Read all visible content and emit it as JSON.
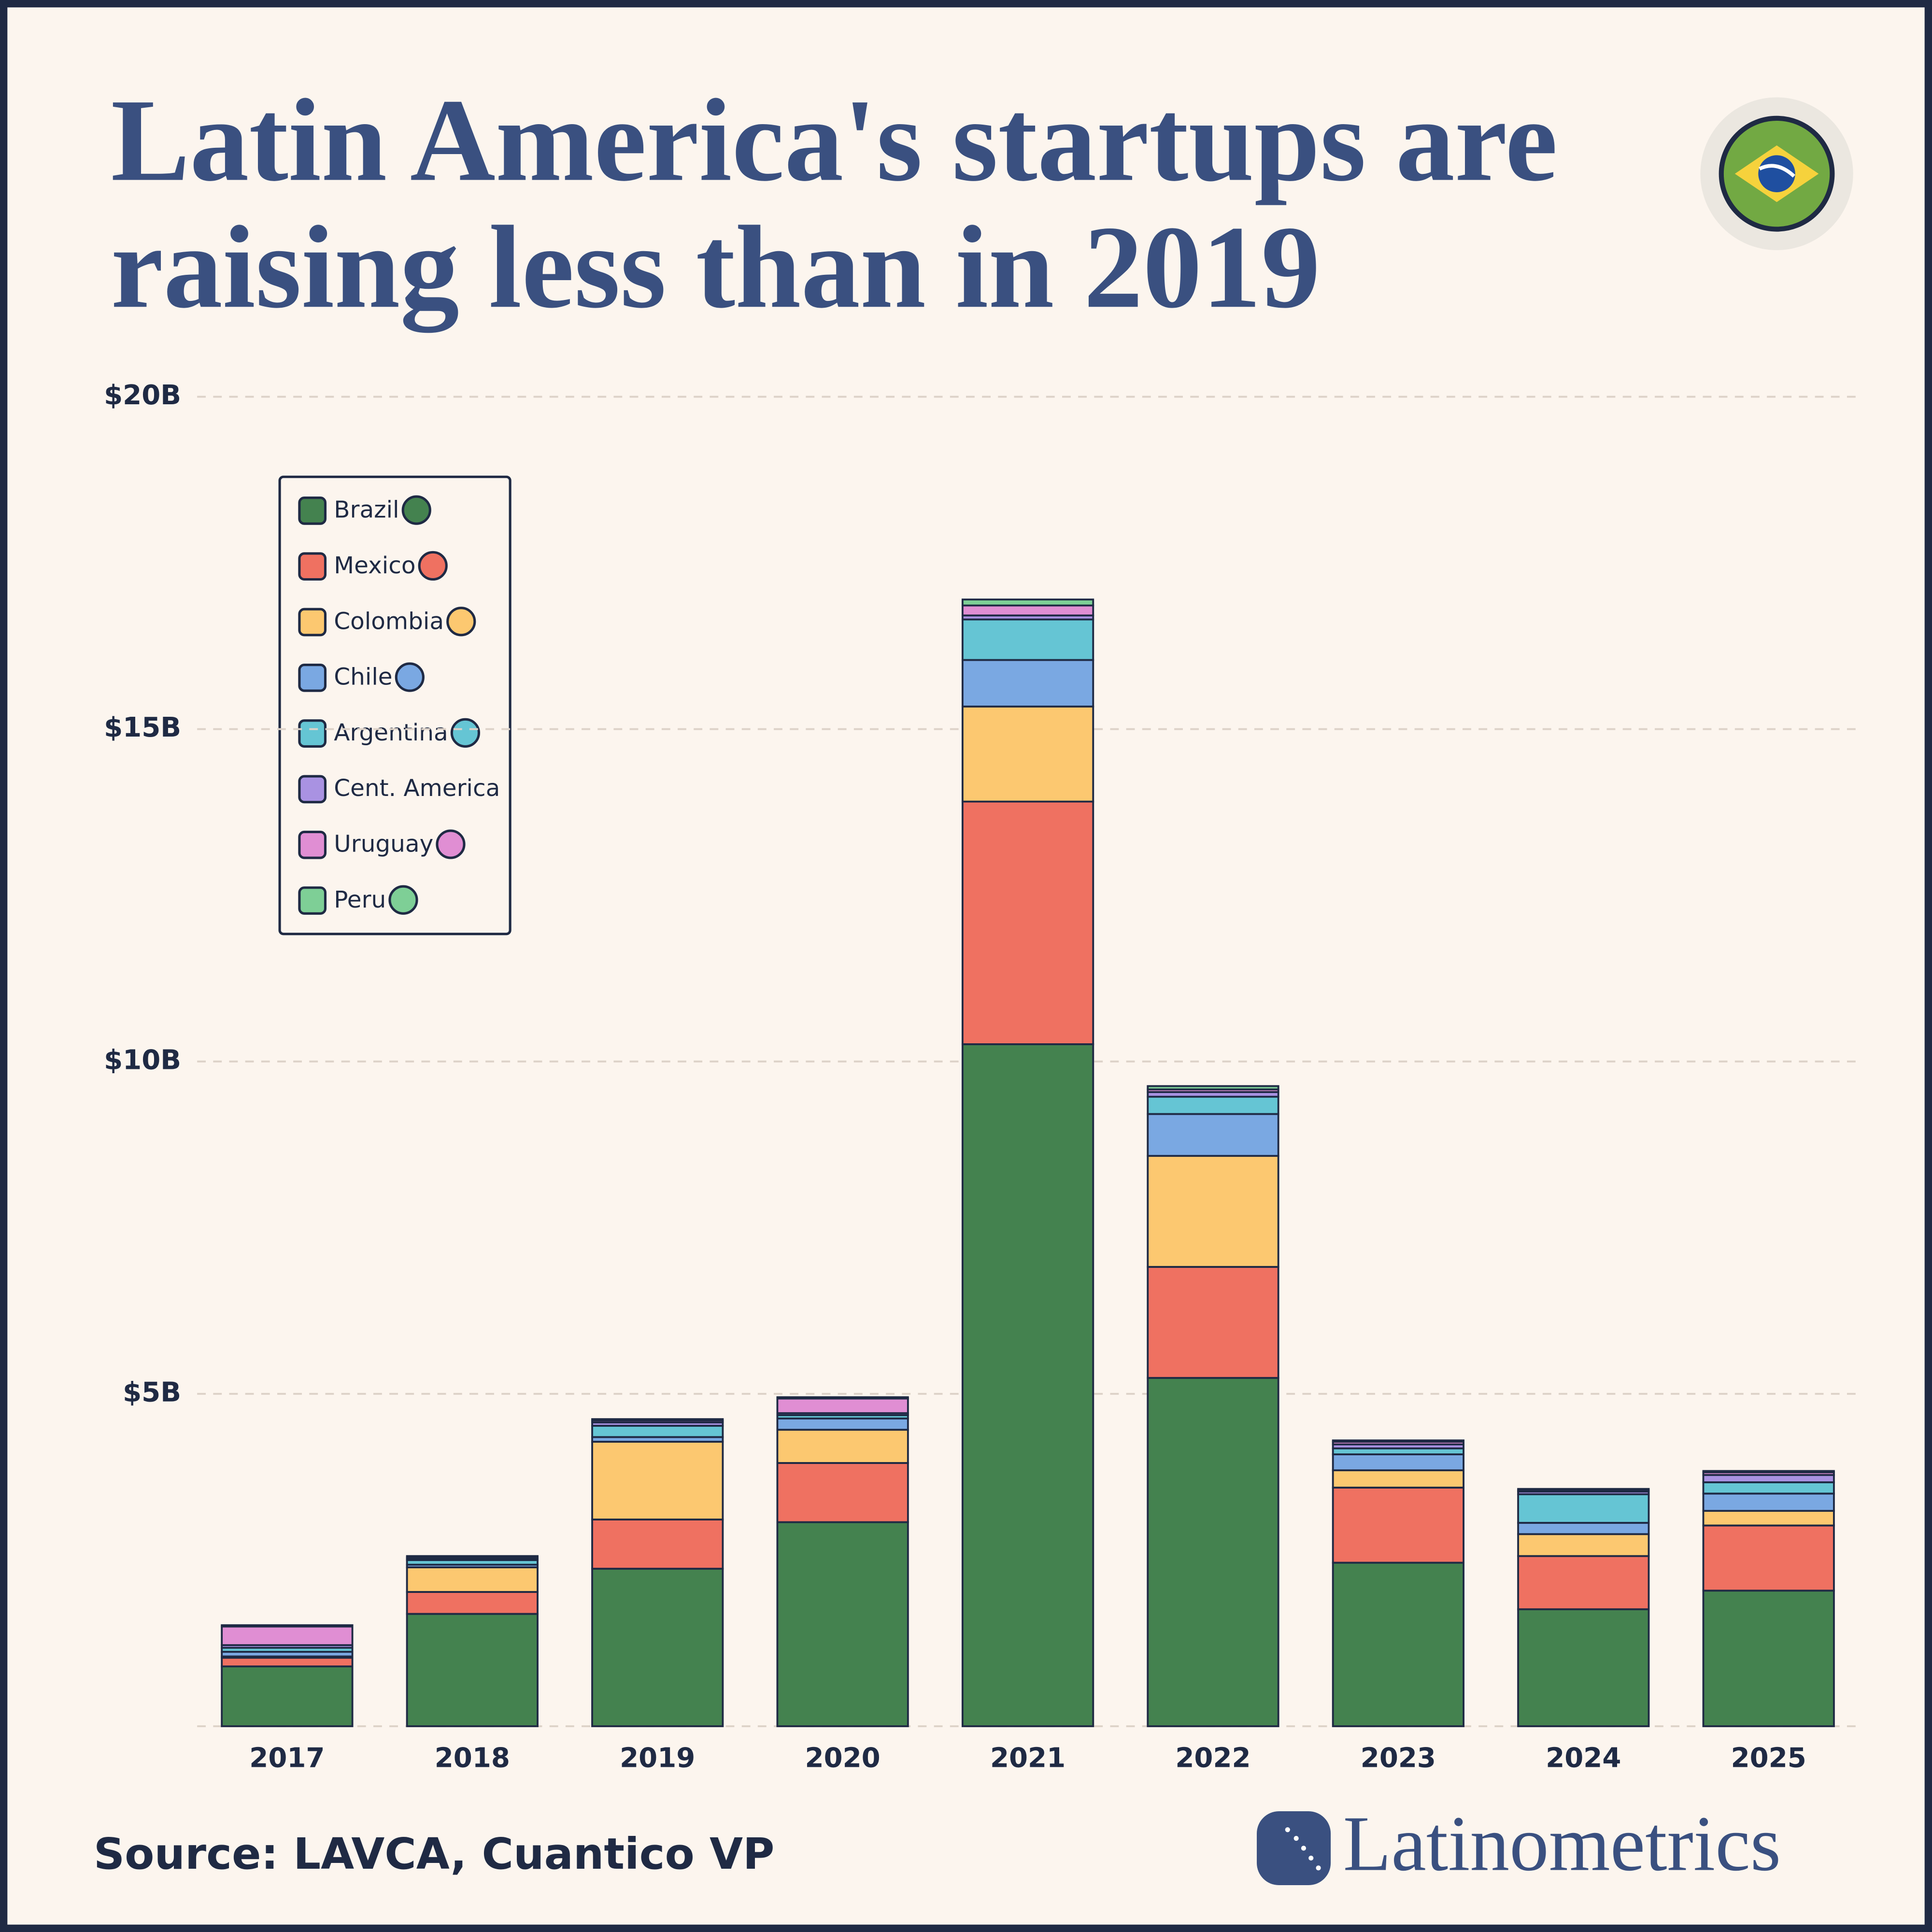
{
  "chart_data": {
    "type": "stacked-bar",
    "title": "Latin America's startups are raising less than in 2019",
    "source": "Source: LAVCA, Cuantico VP",
    "brand": "Latinometrics",
    "categories": [
      "2017",
      "2018",
      "2019",
      "2020",
      "2021",
      "2022",
      "2023",
      "2024",
      "2025"
    ],
    "series": [
      {
        "name": "Brazil",
        "color": "#44824f",
        "values": [
          0.9,
          1.69,
          2.37,
          3.07,
          10.26,
          5.24,
          2.46,
          1.76,
          2.04
        ]
      },
      {
        "name": "Mexico",
        "color": "#ef7161",
        "values": [
          0.13,
          0.33,
          0.74,
          0.89,
          3.65,
          1.67,
          1.13,
          0.8,
          0.98
        ]
      },
      {
        "name": "Colombia",
        "color": "#fcc870",
        "values": [
          0.02,
          0.37,
          1.17,
          0.5,
          1.43,
          1.67,
          0.26,
          0.33,
          0.22
        ]
      },
      {
        "name": "Chile",
        "color": "#7aa8e2",
        "values": [
          0.07,
          0.04,
          0.07,
          0.17,
          0.7,
          0.63,
          0.24,
          0.17,
          0.26
        ]
      },
      {
        "name": "Argentina",
        "color": "#65c5d4",
        "values": [
          0.06,
          0.07,
          0.17,
          0.05,
          0.61,
          0.26,
          0.09,
          0.43,
          0.17
        ]
      },
      {
        "name": "Cent. America",
        "color": "#a992e2",
        "values": [
          0.04,
          0.02,
          0.05,
          0.03,
          0.06,
          0.07,
          0.06,
          0.04,
          0.11
        ]
      },
      {
        "name": "Uruguay",
        "color": "#e08ed3",
        "values": [
          0.28,
          0.02,
          0.03,
          0.22,
          0.15,
          0.04,
          0.04,
          0.02,
          0.04
        ]
      },
      {
        "name": "Peru",
        "color": "#7ecf96",
        "values": [
          0.02,
          0.02,
          0.02,
          0.02,
          0.09,
          0.05,
          0.02,
          0.02,
          0.02
        ]
      }
    ],
    "ylim": [
      0,
      20
    ],
    "yticks": [
      {
        "value": 5,
        "label": "$5B"
      },
      {
        "value": 10,
        "label": "$10B"
      },
      {
        "value": 15,
        "label": "$15B"
      },
      {
        "value": 20,
        "label": "$20B"
      }
    ],
    "grid": true
  }
}
